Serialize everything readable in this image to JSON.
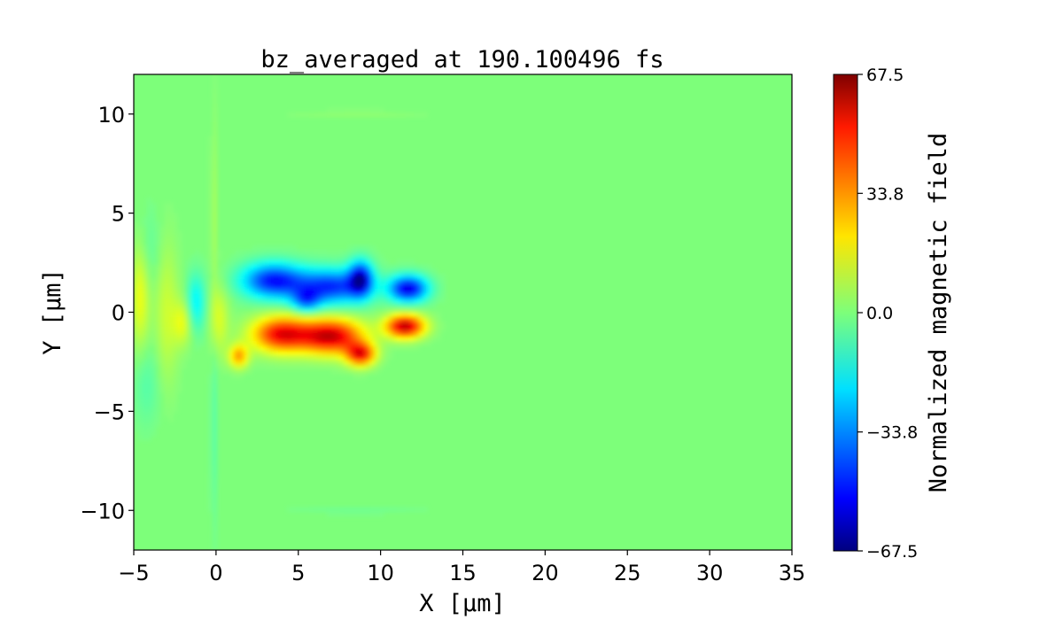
{
  "chart_data": {
    "type": "heatmap",
    "title": "bz_averaged at 190.100496 fs",
    "xlabel": "X [μm]",
    "ylabel": "Y [μm]",
    "xlim": [
      -5,
      35
    ],
    "ylim": [
      -12,
      12
    ],
    "x_ticks": [
      -5,
      0,
      5,
      10,
      15,
      20,
      25,
      30,
      35
    ],
    "y_ticks": [
      -10,
      -5,
      0,
      5,
      10
    ],
    "x_tick_labels": [
      "−5",
      "0",
      "5",
      "10",
      "15",
      "20",
      "25",
      "30",
      "35"
    ],
    "y_tick_labels": [
      "−10",
      "−5",
      "0",
      "5",
      "10"
    ],
    "colormap": "jet",
    "colorbar": {
      "label": "Normalized magnetic field",
      "min": -67.5,
      "max": 67.5,
      "ticks": [
        67.5,
        33.8,
        0.0,
        -33.8,
        -67.5
      ],
      "tick_labels": [
        "67.5",
        "33.8",
        "0.0",
        "−33.8",
        "−67.5"
      ]
    },
    "background_value": 0.0,
    "features": [
      {
        "x": 3.5,
        "y": 1.6,
        "sx": 1.3,
        "sy": 0.6,
        "value": -48
      },
      {
        "x": 7.0,
        "y": 1.3,
        "sx": 1.5,
        "sy": 0.6,
        "value": -45
      },
      {
        "x": 8.8,
        "y": 1.7,
        "sx": 0.5,
        "sy": 0.6,
        "value": -52
      },
      {
        "x": 11.7,
        "y": 1.2,
        "sx": 0.8,
        "sy": 0.45,
        "value": -55
      },
      {
        "x": 5.5,
        "y": 0.6,
        "sx": 0.6,
        "sy": 0.4,
        "value": -30
      },
      {
        "x": 4.0,
        "y": -1.1,
        "sx": 1.2,
        "sy": 0.6,
        "value": 52
      },
      {
        "x": 7.0,
        "y": -1.2,
        "sx": 1.3,
        "sy": 0.6,
        "value": 58
      },
      {
        "x": 8.8,
        "y": -2.1,
        "sx": 0.6,
        "sy": 0.4,
        "value": 50
      },
      {
        "x": 11.5,
        "y": -0.7,
        "sx": 0.8,
        "sy": 0.4,
        "value": 60
      },
      {
        "x": 1.4,
        "y": -2.2,
        "sx": 0.4,
        "sy": 0.4,
        "value": 30
      },
      {
        "x": -4.6,
        "y": 1.0,
        "sx": 0.4,
        "sy": 2.0,
        "value": 16
      },
      {
        "x": -3.0,
        "y": 0.0,
        "sx": 0.5,
        "sy": 2.5,
        "value": 10
      },
      {
        "x": -1.2,
        "y": 0.5,
        "sx": 0.4,
        "sy": 1.0,
        "value": -18
      },
      {
        "x": -2.0,
        "y": -0.5,
        "sx": 0.4,
        "sy": 0.8,
        "value": 14
      },
      {
        "x": 0.2,
        "y": -0.3,
        "sx": 0.4,
        "sy": 1.2,
        "value": 12
      },
      {
        "x": -4.2,
        "y": 3.0,
        "sx": 0.6,
        "sy": 1.5,
        "value": -6
      },
      {
        "x": -4.2,
        "y": -3.5,
        "sx": 0.6,
        "sy": 1.5,
        "value": -6
      },
      {
        "x": -0.1,
        "y": 4.0,
        "sx": 0.15,
        "sy": 4.0,
        "value": 5
      },
      {
        "x": -0.1,
        "y": -5.0,
        "sx": 0.15,
        "sy": 4.0,
        "value": -5
      },
      {
        "x": 8.5,
        "y": 10.0,
        "sx": 3.0,
        "sy": 0.15,
        "value": 2
      },
      {
        "x": 8.5,
        "y": -10.0,
        "sx": 3.0,
        "sy": 0.15,
        "value": -2
      }
    ]
  }
}
